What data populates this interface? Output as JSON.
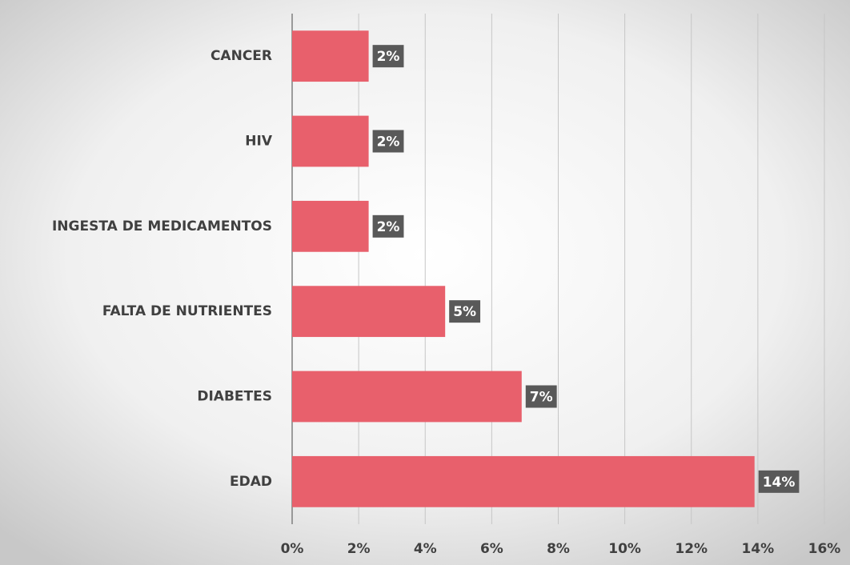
{
  "chart_data": {
    "type": "barh",
    "categories": [
      "CANCER",
      "HIV",
      "INGESTA DE MEDICAMENTOS",
      "FALTA DE NUTRIENTES",
      "DIABETES",
      "EDAD"
    ],
    "values": [
      2.3,
      2.3,
      2.3,
      4.6,
      6.9,
      13.9
    ],
    "value_labels": [
      "2%",
      "2%",
      "2%",
      "5%",
      "7%",
      "14%"
    ],
    "color": "#e8606c",
    "xlim": [
      0,
      16
    ],
    "xticks": [
      {
        "value": 0,
        "label": "0%"
      },
      {
        "value": 2,
        "label": "2%"
      },
      {
        "value": 4,
        "label": "4%"
      },
      {
        "value": 6,
        "label": "6%"
      },
      {
        "value": 8,
        "label": "8%"
      },
      {
        "value": 10,
        "label": "10%"
      },
      {
        "value": 12,
        "label": "12%"
      },
      {
        "value": 14,
        "label": "14%"
      },
      {
        "value": 16,
        "label": "16%"
      }
    ],
    "grid": true
  }
}
